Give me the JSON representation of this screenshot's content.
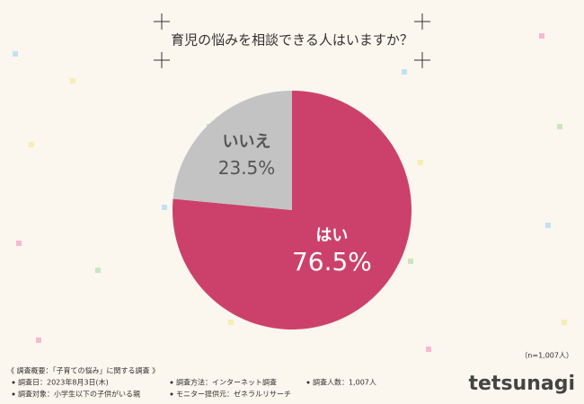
{
  "chart_data": {
    "type": "pie",
    "title": "育児の悩みを相談できる人はいますか？",
    "categories": [
      "はい",
      "いいえ"
    ],
    "values": [
      76.5,
      23.5
    ],
    "value_labels": [
      "76.5%",
      "23.5%"
    ],
    "colors": [
      "#cc416b",
      "#c3c3c3"
    ],
    "note": "（n=1,007人）"
  },
  "survey": {
    "heading": "《 調査概要：「子育ての悩み」に関する調査 》",
    "items": [
      "調査日：2023年8月3日(木)",
      "調査方法：インターネット調査",
      "調査人数：1,007人",
      "調査対象：小学生以下の子供がいる親",
      "モニター提供元：ゼネラルリサーチ"
    ]
  },
  "logo": "tetsunagi"
}
